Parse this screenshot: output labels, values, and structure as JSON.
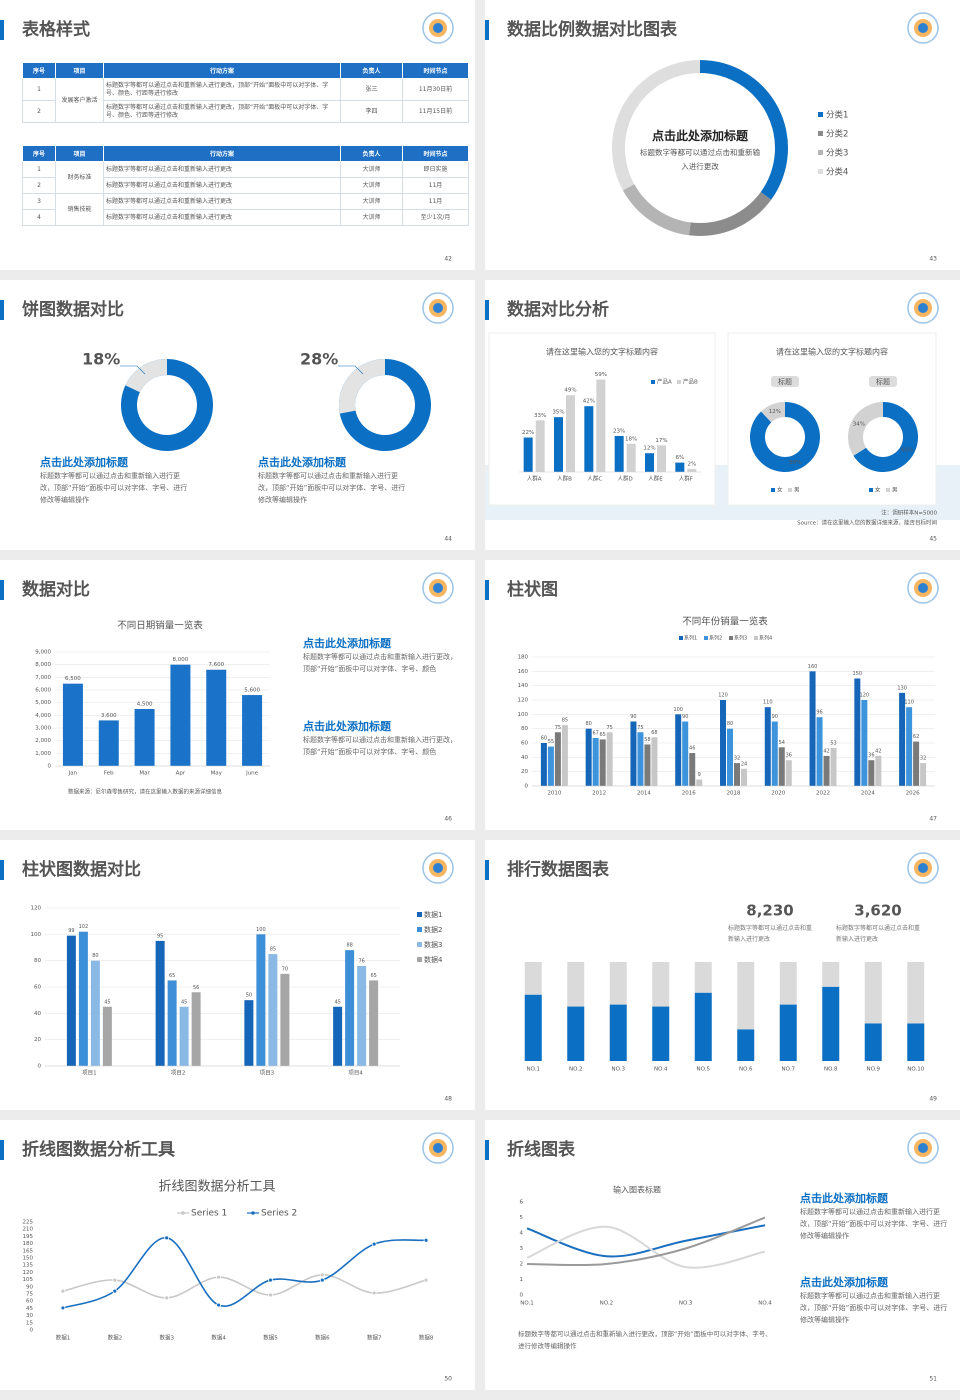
{
  "slides": [
    {
      "title": "表格样式",
      "page": "42",
      "tables": [
        {
          "header": [
            "序号",
            "项目",
            "行动方案",
            "负责人",
            "时间节点"
          ],
          "groups": [
            {
              "project": "发展客户激活",
              "rows": [
                [
                  "1",
                  "标题数字等都可以通过点击和重新输入进行更改，顶部“开始”面板中可以对字体、字号、颜色、行距等进行修改",
                  "张三",
                  "11月30日前"
                ],
                [
                  "2",
                  "标题数字等都可以通过点击和重新输入进行更改，顶部“开始”面板中可以对字体、字号、颜色、行距等进行修改",
                  "李四",
                  "11月15日前"
                ]
              ]
            }
          ]
        },
        {
          "header": [
            "序号",
            "项目",
            "行动方案",
            "负责人",
            "时间节点"
          ],
          "groups": [
            {
              "project": "财务标准",
              "rows": [
                [
                  "1",
                  "标题数字等都可以通过点击和重新输入进行更改",
                  "大训师",
                  "即日实施"
                ],
                [
                  "2",
                  "标题数字等都可以通过点击和重新输入进行更改",
                  "大训师",
                  "11月"
                ]
              ]
            },
            {
              "project": "销售技能",
              "rows": [
                [
                  "3",
                  "标题数字等都可以通过点击和重新输入进行更改",
                  "大训师",
                  "11月"
                ],
                [
                  "4",
                  "标题数字等都可以通过点击和重新输入进行更改",
                  "大训师",
                  "至少1次/月"
                ]
              ]
            }
          ]
        }
      ]
    },
    {
      "title": "数据比例数据对比图表",
      "page": "43",
      "chart": {
        "type": "donut",
        "title": "点击此处添加标题",
        "subtitle": "标题数字等都可以通过点击和重新输入进行更改",
        "categories": [
          "分类1",
          "分类2",
          "分类3",
          "分类4"
        ],
        "values": [
          35,
          17,
          15,
          33
        ],
        "colors": [
          "#0b6fc3",
          "#8c8c8c",
          "#b4b4b4",
          "#dedede"
        ]
      }
    },
    {
      "title": "饼图数据对比",
      "page": "44",
      "color": "#0b6fc3",
      "track_color": "#e3e3e3",
      "items": [
        {
          "value": {
            "value": 18,
            "label": "18%"
          },
          "heading": "点击此处添加标题",
          "text": "标题数字等都可以通过点击和重新输入进行更改，顶部“开始”面板中可以对字体、字号、进行修改等编辑操作"
        },
        {
          "value": {
            "value": 28,
            "label": "28%"
          },
          "heading": "点击此处添加标题",
          "text": "标题数字等都可以通过点击和重新输入进行更改，顶部“开始”面板中可以对字体、字号、进行修改等编辑操作"
        }
      ]
    },
    {
      "title": "数据对比分析",
      "page": "45",
      "bar": {
        "type": "bar",
        "title": "请在这里输入您的文字标题内容",
        "categories": [
          "人群A",
          "人群B",
          "人群C",
          "人群D",
          "人群E",
          "人群F"
        ],
        "ylim": [
          0,
          60
        ],
        "series": [
          {
            "name": "产品A",
            "color": "#0b6fc3",
            "values": [
              22,
              35,
              42,
              23,
              12,
              6
            ],
            "value_labels": [
              "22%",
              "35%",
              "42%",
              "23%",
              "12%",
              "6%"
            ]
          },
          {
            "name": "产品B",
            "color": "#d2d2d2",
            "values": [
              33,
              49,
              59,
              18,
              17,
              2
            ],
            "value_labels": [
              "33%",
              "49%",
              "59%",
              "18%",
              "17%",
              "2%"
            ]
          }
        ]
      },
      "donuts": {
        "type": "donut",
        "title": "请在这里输入您的文字标题内容",
        "series": [
          {
            "name": "女",
            "color": "#0b6fc3"
          },
          {
            "name": "男",
            "color": "#d2d2d2"
          }
        ],
        "charts": [
          {
            "label": "标题",
            "values": [
              88,
              12
            ],
            "value_labels": [
              "88%",
              "12%"
            ]
          },
          {
            "label": "标题",
            "values": [
              66,
              34
            ],
            "value_labels": [
              "66%",
              "34%"
            ]
          }
        ]
      },
      "note": "注：调研样本N=5000",
      "source": "Source：请在这里输入您的数据详细来源，能否目标时间"
    },
    {
      "title": "数据对比",
      "page": "46",
      "chart": {
        "type": "bar",
        "title": "不同日期销量一览表",
        "categories": [
          "Jan",
          "Feb",
          "Mar",
          "Apr",
          "May",
          "June"
        ],
        "values": [
          6500,
          3600,
          4500,
          8000,
          7600,
          5600
        ],
        "value_labels": [
          "6,500",
          "3,600",
          "4,500",
          "8,000",
          "7,600",
          "5,600"
        ],
        "color": "#1a73c8",
        "ylim": [
          0,
          9000
        ],
        "yticks": [
          0,
          {
            "value": 1000,
            "label": "1,000"
          },
          {
            "value": 2000,
            "label": "2,000"
          },
          {
            "value": 3000,
            "label": "3,000"
          },
          {
            "value": 4000,
            "label": "4,000"
          },
          {
            "value": 5000,
            "label": "5,000"
          },
          {
            "value": 6000,
            "label": "6,000"
          },
          {
            "value": 7000,
            "label": "7,000"
          },
          {
            "value": 8000,
            "label": "8,000"
          },
          {
            "value": 9000,
            "label": "9,000"
          }
        ],
        "grid": true,
        "source": "数据来源：尼尔森零售研究，请在这里输入数据的来源详细信息"
      },
      "items": [
        {
          "heading": "点击此处添加标题",
          "text": "标题数字等都可以通过点击和重新输入进行更改，顶部“开始”面板中可以对字体、字号、颜色"
        },
        {
          "heading": "点击此处添加标题",
          "text": "标题数字等都可以通过点击和重新输入进行更改，顶部“开始”面板中可以对字体、字号、颜色"
        }
      ]
    },
    {
      "title": "柱状图",
      "page": "47",
      "chart": {
        "type": "bar",
        "title": "不同年份销量一览表",
        "categories": [
          "2010",
          "2012",
          "2014",
          "2016",
          "2018",
          "2020",
          "2022",
          "2024",
          "2026"
        ],
        "ylim": [
          0,
          180
        ],
        "yticks": [
          0,
          20,
          40,
          60,
          80,
          100,
          120,
          140,
          160,
          180
        ],
        "grid": true,
        "series": [
          {
            "name": "系列1",
            "color": "#1565b8",
            "values": [
              60,
              80,
              90,
              100,
              120,
              110,
              160,
              150,
              130
            ]
          },
          {
            "name": "系列2",
            "color": "#3d94dc",
            "values": [
              55,
              67,
              75,
              90,
              80,
              90,
              96,
              120,
              110
            ]
          },
          {
            "name": "系列3",
            "color": "#7a7a7a",
            "values": [
              75,
              65,
              58,
              46,
              32,
              54,
              42,
              36,
              62
            ]
          },
          {
            "name": "系列4",
            "color": "#c7c7c7",
            "values": [
              85,
              75,
              68,
              9,
              24,
              36,
              53,
              42,
              32
            ]
          }
        ]
      }
    },
    {
      "title": "柱状图数据对比",
      "page": "48",
      "chart": {
        "type": "bar",
        "categories": [
          "项目1",
          "项目2",
          "项目3",
          "项目4"
        ],
        "ylim": [
          0,
          120
        ],
        "yticks": [
          0,
          20,
          40,
          60,
          80,
          100,
          120
        ],
        "grid": true,
        "legend": "right",
        "series": [
          {
            "name": "数据1",
            "color": "#1565b8",
            "values": [
              99,
              95,
              50,
              45
            ]
          },
          {
            "name": "数据2",
            "color": "#3d8fd8",
            "values": [
              102,
              65,
              100,
              88
            ]
          },
          {
            "name": "数据3",
            "color": "#8ab9e6",
            "values": [
              80,
              45,
              85,
              76
            ]
          },
          {
            "name": "数据4",
            "color": "#a6a6a6",
            "values": [
              45,
              56,
              70,
              65
            ]
          }
        ]
      }
    },
    {
      "title": "排行数据图表",
      "page": "49",
      "stats": [
        {
          "value": "8,230",
          "color": "#0b6fc3",
          "text": "标题数字等都可以通过点击和重新输入进行更改"
        },
        {
          "value": "3,620",
          "color": "#9a9a9a",
          "text": "标题数字等都可以通过点击和重新输入进行更改"
        }
      ],
      "chart": {
        "type": "stacked-bar",
        "categories": [
          "NO.1",
          "NO.2",
          "NO.3",
          "NO.4",
          "NO.5",
          "NO.6",
          "NO.7",
          "NO.8",
          "NO.9",
          "NO.10"
        ],
        "ylim": [
          0,
          100
        ],
        "series": [
          {
            "color": "#0b6fc3",
            "values": [
              67,
              55,
              57,
              55,
              69,
              32,
              57,
              75,
              38,
              38
            ]
          },
          {
            "color": "#dadada",
            "values": [
              33,
              45,
              43,
              45,
              31,
              68,
              43,
              25,
              62,
              62
            ]
          }
        ]
      }
    },
    {
      "title": "折线图数据分析工具",
      "page": "50",
      "chart": {
        "type": "line",
        "title": "折线图数据分析工具",
        "categories": [
          "数据1",
          "数据2",
          "数据3",
          "数据4",
          "数据5",
          "数据6",
          "数据7",
          "数据8"
        ],
        "ylim": [
          0,
          225
        ],
        "yticks": [
          0,
          15,
          30,
          45,
          60,
          75,
          90,
          105,
          120,
          135,
          150,
          165,
          180,
          195,
          210,
          225
        ],
        "smooth": true,
        "series": [
          {
            "name": "Series 1",
            "color": "#c8c8c8",
            "values": [
              81,
              104,
              67,
              110,
              73,
              115,
              77,
              104
            ]
          },
          {
            "name": "Series 2",
            "color": "#1a6fc0",
            "values": [
              46,
              81,
              192,
              52,
              104,
              104,
              179,
              187
            ]
          }
        ]
      }
    },
    {
      "title": "折线图表",
      "page": "51",
      "chart": {
        "type": "line",
        "title": "输入图表标题",
        "categories": [
          "NO.1",
          "NO.2",
          "NO.3",
          "NO.4"
        ],
        "ylim": [
          0,
          6
        ],
        "yticks": [
          0,
          1,
          2,
          3,
          4,
          5,
          6
        ],
        "smooth": true,
        "series": [
          {
            "color": "#1a6fc0",
            "values": [
              4.3,
              2.5,
              3.5,
              4.5
            ]
          },
          {
            "color": "#d8d8d8",
            "values": [
              2.4,
              4.4,
              1.8,
              2.8
            ]
          },
          {
            "color": "#9a9a9a",
            "values": [
              2,
              2,
              3,
              5
            ]
          }
        ]
      },
      "note": "标题数字等都可以通过点击和重新输入进行更改，顶部“开始”面板中可以对字体、字号、进行修改等编辑操作",
      "items": [
        {
          "heading": "点击此处添加标题",
          "text": "标题数字等都可以通过点击和重新输入进行更改，顶部“开始”面板中可以对字体、字号、进行修改等编辑操作"
        },
        {
          "heading": "点击此处添加标题",
          "text": "标题数字等都可以通过点击和重新输入进行更改，顶部“开始”面板中可以对字体、字号、进行修改等编辑操作"
        }
      ]
    }
  ]
}
